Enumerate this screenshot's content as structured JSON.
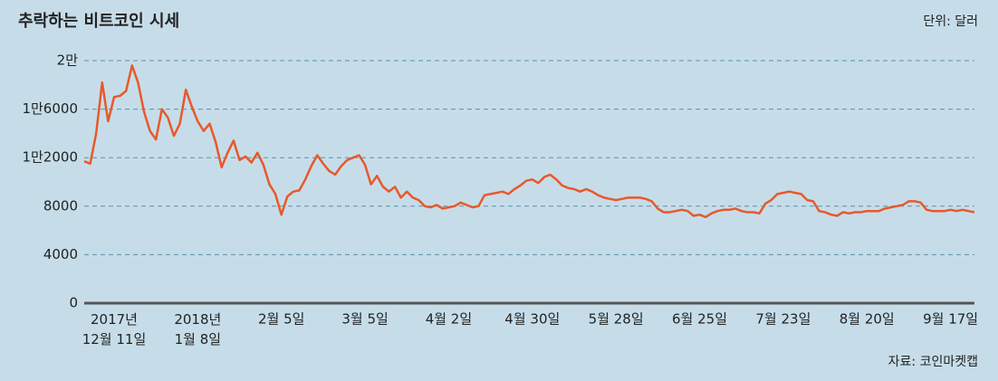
{
  "chart_data": {
    "type": "line",
    "title": "추락하는 비트코인 시세",
    "unit": "단위: 달러",
    "source": "자료: 코인마켓캡",
    "categories": [
      null,
      null,
      null,
      null,
      null,
      "2017년\n12월 11일",
      null,
      null,
      null,
      null,
      null,
      null,
      null,
      null,
      null,
      null,
      null,
      null,
      null,
      "2018년\n1월 8일",
      null,
      null,
      null,
      null,
      null,
      null,
      null,
      null,
      null,
      null,
      null,
      null,
      null,
      "2월 5일",
      null,
      null,
      null,
      null,
      null,
      null,
      null,
      null,
      null,
      null,
      null,
      null,
      null,
      "3월 5일",
      null,
      null,
      null,
      null,
      null,
      null,
      null,
      null,
      null,
      null,
      null,
      null,
      null,
      "4월 2일",
      null,
      null,
      null,
      null,
      null,
      null,
      null,
      null,
      null,
      null,
      null,
      null,
      null,
      "4월 30일",
      null,
      null,
      null,
      null,
      null,
      null,
      null,
      null,
      null,
      null,
      null,
      null,
      null,
      "5월 28일",
      null,
      null,
      null,
      null,
      null,
      null,
      null,
      null,
      null,
      null,
      null,
      null,
      null,
      "6월 25일",
      null,
      null,
      null,
      null,
      null,
      null,
      null,
      null,
      null,
      null,
      null,
      null,
      null,
      "7월 23일",
      null,
      null,
      null,
      null,
      null,
      null,
      null,
      null,
      null,
      null,
      null,
      null,
      null,
      "8월 20일",
      null,
      null,
      null,
      null,
      null,
      null,
      null,
      null,
      null,
      null,
      null,
      null,
      null,
      "9월 17일",
      null,
      null,
      null,
      null
    ],
    "values": [
      11700,
      11500,
      14000,
      18200,
      15000,
      17000,
      17100,
      17500,
      19600,
      18200,
      15800,
      14200,
      13500,
      16000,
      15300,
      13800,
      14800,
      17600,
      16200,
      15000,
      14200,
      14800,
      13300,
      11200,
      12400,
      13400,
      11800,
      12100,
      11600,
      12400,
      11400,
      9800,
      9000,
      7300,
      8800,
      9200,
      9300,
      10200,
      11300,
      12200,
      11500,
      10900,
      10600,
      11300,
      11800,
      12000,
      12200,
      11400,
      9800,
      10500,
      9600,
      9200,
      9600,
      8700,
      9200,
      8700,
      8500,
      8000,
      7900,
      8100,
      7800,
      7900,
      8000,
      8300,
      8100,
      7900,
      8000,
      8900,
      9000,
      9100,
      9200,
      9000,
      9400,
      9700,
      10100,
      10200,
      9900,
      10400,
      10600,
      10200,
      9700,
      9500,
      9400,
      9200,
      9400,
      9200,
      8900,
      8700,
      8600,
      8500,
      8600,
      8700,
      8700,
      8700,
      8600,
      8400,
      7800,
      7500,
      7500,
      7600,
      7700,
      7600,
      7200,
      7300,
      7100,
      7400,
      7600,
      7700,
      7700,
      7800,
      7600,
      7500,
      7500,
      7400,
      8200,
      8500,
      9000,
      9100,
      9200,
      9100,
      9000,
      8500,
      8400,
      7600,
      7500,
      7300,
      7200,
      7500,
      7400,
      7500,
      7500,
      7600,
      7600,
      7600,
      7800,
      7900,
      8000,
      8100,
      8400,
      8400,
      8300,
      7700,
      7600,
      7600,
      7600,
      7700,
      7600,
      7700,
      7600,
      7500
    ],
    "color": "#e9582b",
    "ylim": [
      0,
      20000
    ],
    "yticks": [
      0,
      4000,
      8000,
      {
        "value": 12000,
        "label": "1만2000"
      },
      {
        "value": 16000,
        "label": "1만6000"
      },
      {
        "value": 20000,
        "label": "2만"
      }
    ],
    "grid": true
  }
}
